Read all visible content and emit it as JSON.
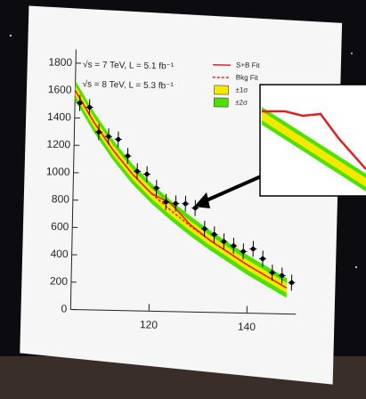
{
  "chart_data": {
    "type": "scatter",
    "annotations": [
      "√s = 7 TeV, L = 5.1 fb⁻¹",
      "√s = 8 TeV, L = 5.3 fb⁻¹"
    ],
    "x": [
      105,
      107,
      109,
      111,
      113,
      115,
      117,
      119,
      121,
      123,
      125,
      127,
      129,
      131,
      133,
      135,
      137,
      139,
      141,
      143,
      145,
      147,
      149
    ],
    "values": [
      1510,
      1480,
      1300,
      1270,
      1250,
      1130,
      1020,
      1000,
      900,
      800,
      790,
      790,
      760,
      610,
      570,
      520,
      490,
      450,
      470,
      400,
      300,
      280,
      230
    ],
    "color": "#000000",
    "fit_x": [
      104,
      108,
      112,
      116,
      120,
      124,
      128,
      132,
      136,
      140,
      144,
      148
    ],
    "series": [
      {
        "name": "S+B Fit",
        "color": "#e02020",
        "values": [
          1600,
          1370,
          1170,
          1000,
          860,
          790,
          640,
          530,
          440,
          350,
          270,
          190
        ]
      },
      {
        "name": "Bkg Fit",
        "color": "#e02020",
        "values": [
          1600,
          1370,
          1170,
          1000,
          860,
          740,
          630,
          530,
          440,
          350,
          270,
          190
        ]
      }
    ],
    "bands": [
      {
        "name": "±1σ",
        "color": "#f5e800"
      },
      {
        "name": "±2σ",
        "color": "#4fe000"
      }
    ],
    "xlim": [
      104,
      150
    ],
    "xticks": [
      120,
      140
    ],
    "ylim": [
      0,
      1900
    ],
    "yticks": [
      0,
      200,
      400,
      600,
      800,
      1000,
      1200,
      1400,
      1600,
      1800
    ]
  }
}
